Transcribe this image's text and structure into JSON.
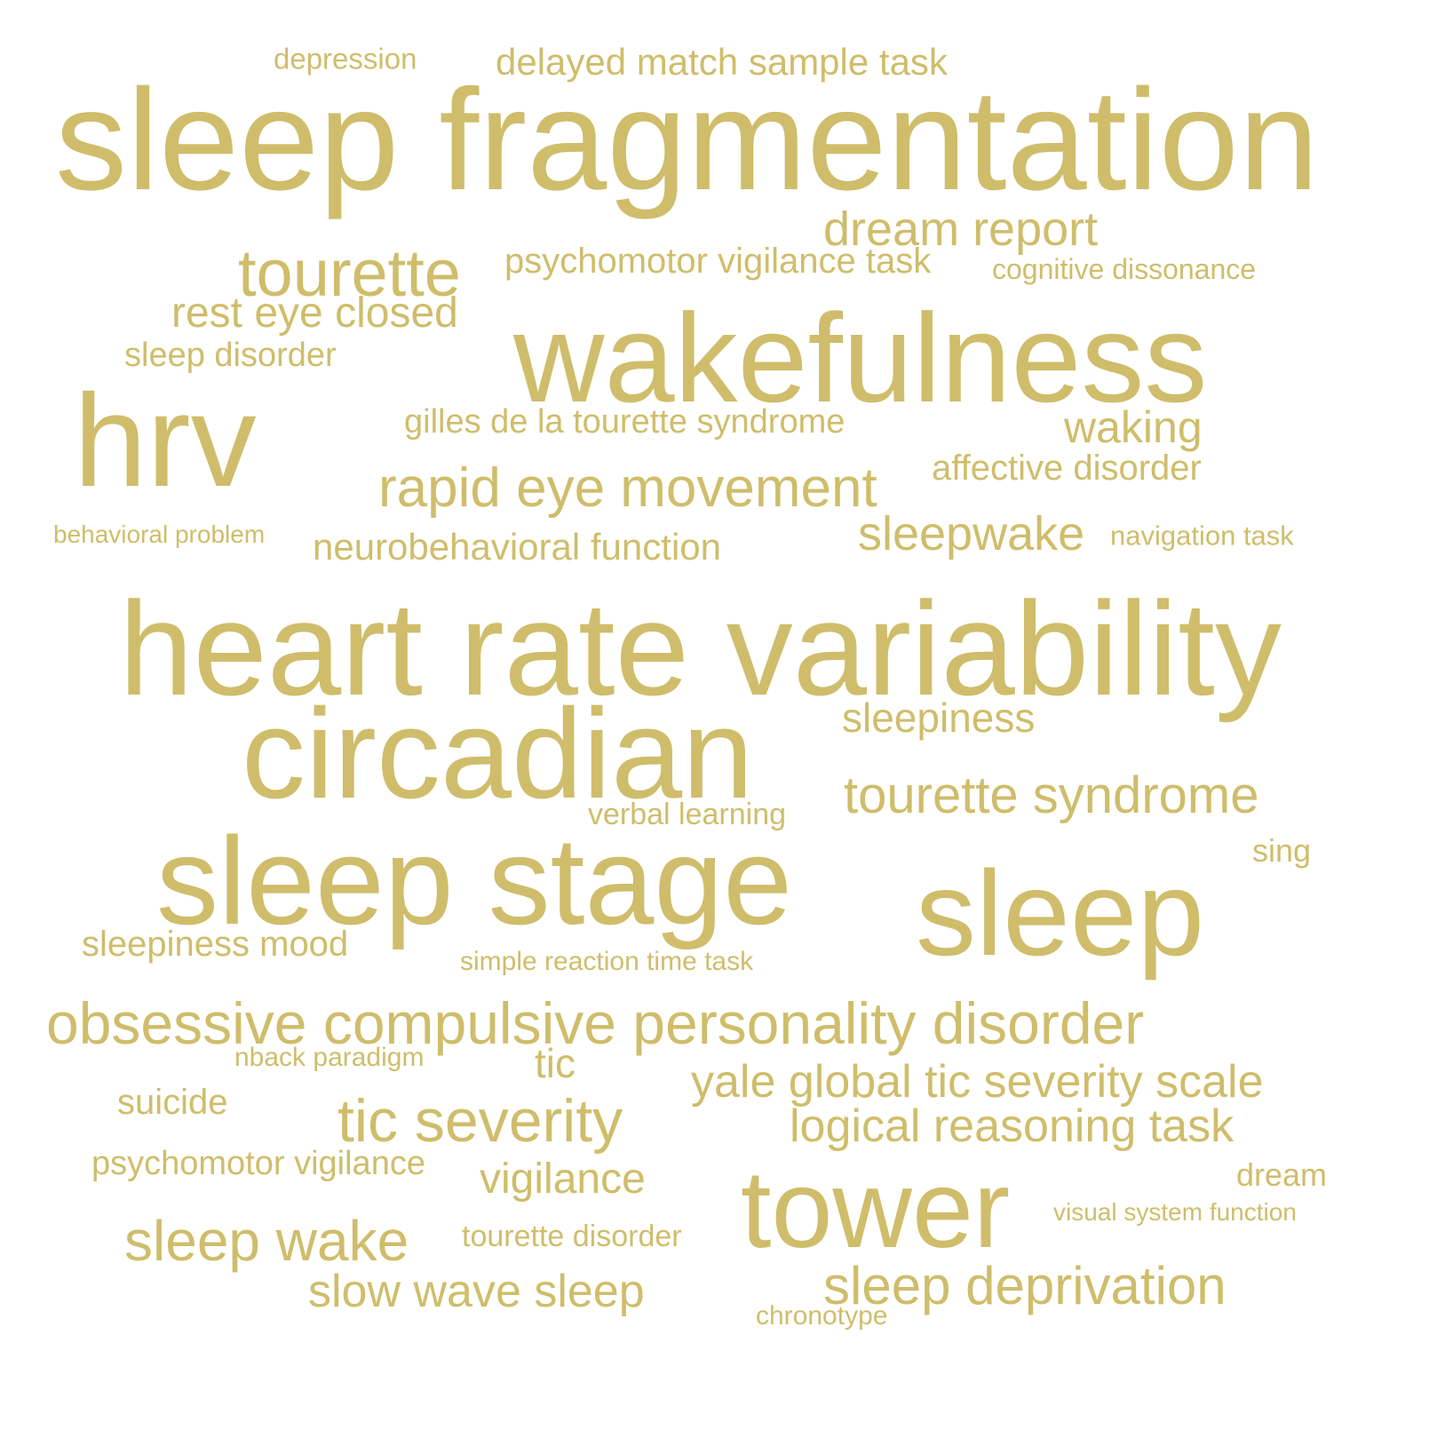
{
  "word_color": "#cfbd6b",
  "words": [
    {
      "text": "depression"
    },
    {
      "text": "delayed match sample task"
    },
    {
      "text": "sleep fragmentation"
    },
    {
      "text": "dream report"
    },
    {
      "text": "tourette"
    },
    {
      "text": "psychomotor vigilance task"
    },
    {
      "text": "cognitive dissonance"
    },
    {
      "text": "rest eye closed"
    },
    {
      "text": "wakefulness"
    },
    {
      "text": "sleep disorder"
    },
    {
      "text": "hrv"
    },
    {
      "text": "gilles de la tourette syndrome"
    },
    {
      "text": "waking"
    },
    {
      "text": "affective disorder"
    },
    {
      "text": "rapid eye movement"
    },
    {
      "text": "behavioral problem"
    },
    {
      "text": "neurobehavioral function"
    },
    {
      "text": "sleepwake"
    },
    {
      "text": "navigation task"
    },
    {
      "text": "heart rate variability"
    },
    {
      "text": "sleepiness"
    },
    {
      "text": "circadian"
    },
    {
      "text": "tourette syndrome"
    },
    {
      "text": "verbal learning"
    },
    {
      "text": "sing"
    },
    {
      "text": "sleep stage"
    },
    {
      "text": "sleep"
    },
    {
      "text": "sleepiness mood"
    },
    {
      "text": "simple reaction time task"
    },
    {
      "text": "obsessive compulsive personality disorder"
    },
    {
      "text": "nback paradigm"
    },
    {
      "text": "tic"
    },
    {
      "text": "yale global tic severity scale"
    },
    {
      "text": "suicide"
    },
    {
      "text": "tic severity"
    },
    {
      "text": "logical reasoning task"
    },
    {
      "text": "psychomotor vigilance"
    },
    {
      "text": "vigilance"
    },
    {
      "text": "tower"
    },
    {
      "text": "dream"
    },
    {
      "text": "visual system function"
    },
    {
      "text": "sleep wake"
    },
    {
      "text": "tourette disorder"
    },
    {
      "text": "slow wave sleep"
    },
    {
      "text": "sleep deprivation"
    },
    {
      "text": "chronotype"
    }
  ]
}
